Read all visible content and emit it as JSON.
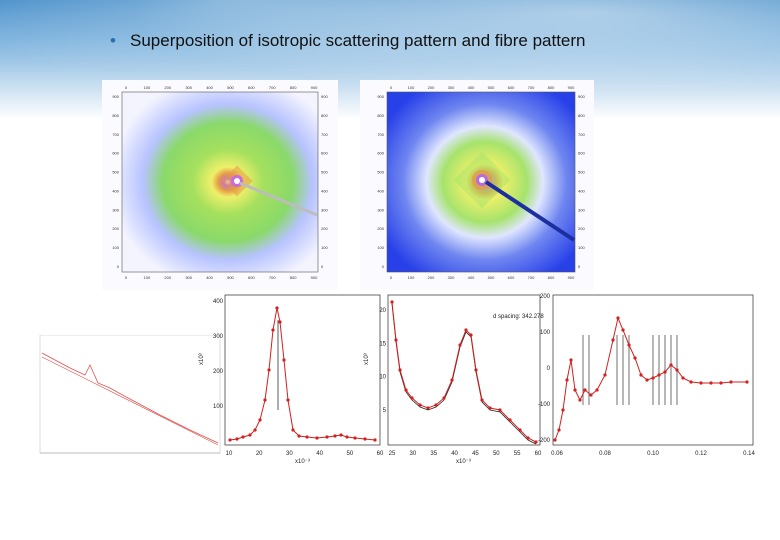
{
  "slide": {
    "bullet_text": "Superposition of isotropic scattering pattern and fibre pattern"
  },
  "images": {
    "left_pattern": {
      "colors": [
        "#f4f4ff",
        "#b7c3ff",
        "#8ad96a",
        "#eef06a",
        "#e59b45",
        "#c66bd8",
        "#ffffff"
      ],
      "x_ticks": [
        "0",
        "100",
        "200",
        "300",
        "400",
        "500",
        "600",
        "700",
        "800",
        "900"
      ],
      "y_ticks": [
        "900",
        "800",
        "700",
        "600",
        "500",
        "400",
        "300",
        "200",
        "100",
        "0"
      ]
    },
    "right_pattern": {
      "colors": [
        "#2740e8",
        "#6f86f0",
        "#dfe6ff",
        "#a6e36c",
        "#eef06a",
        "#e59b45",
        "#b56de0"
      ],
      "x_ticks": [
        "0",
        "100",
        "200",
        "300",
        "400",
        "500",
        "600",
        "700",
        "800",
        "900"
      ],
      "y_ticks": [
        "900",
        "800",
        "700",
        "600",
        "500",
        "400",
        "300",
        "200",
        "100",
        "0"
      ]
    }
  },
  "plots": {
    "plot1": {
      "x_ticks": [
        "10",
        "20",
        "30",
        "40",
        "50",
        "60"
      ],
      "y_ticks": [
        "400",
        "300",
        "200",
        "100"
      ],
      "x_unit": "x10⁻³",
      "y_unit": "x10³"
    },
    "plot2": {
      "annotation": "d spacing: 342.278",
      "x_ticks": [
        "25",
        "30",
        "35",
        "40",
        "45",
        "50",
        "55",
        "60"
      ],
      "y_ticks": [
        "20",
        "15",
        "10",
        "5"
      ],
      "x_unit": "x10⁻³",
      "y_unit": "x10³"
    },
    "plot3": {
      "x_ticks": [
        "0.06",
        "0.08",
        "0.10",
        "0.12",
        "0.14"
      ],
      "y_ticks": [
        "200",
        "100",
        "0",
        "-100",
        "-200"
      ]
    }
  }
}
